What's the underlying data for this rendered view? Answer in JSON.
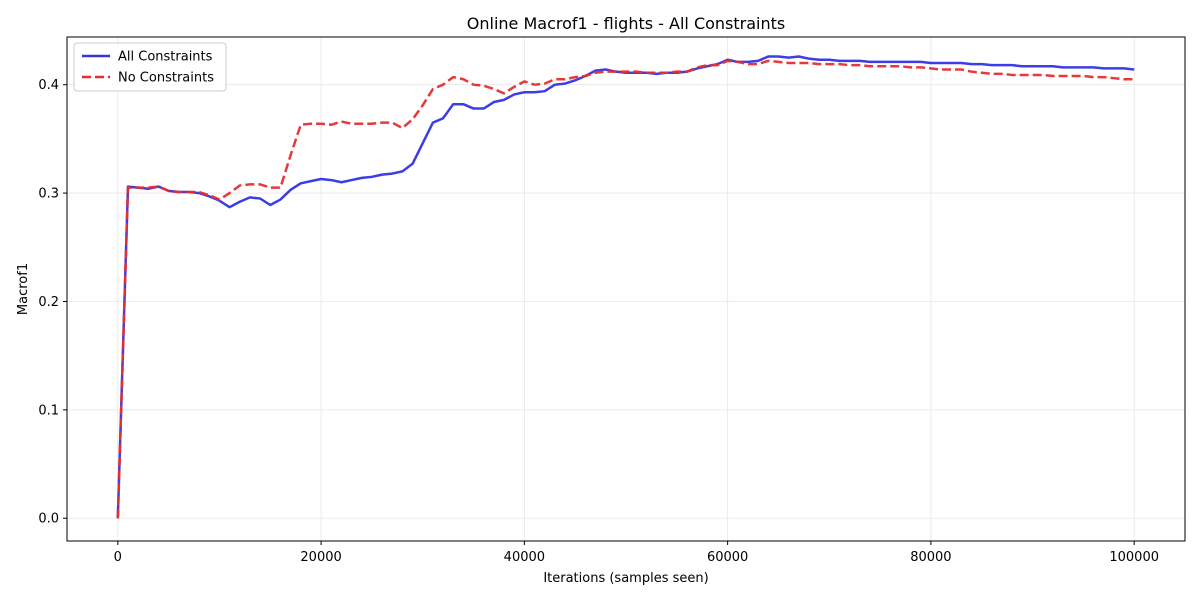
{
  "chart_data": {
    "type": "line",
    "title": "Online Macrof1 - flights - All Constraints",
    "xlabel": "Iterations (samples seen)",
    "ylabel": "Macrof1",
    "xlim": [
      -5000,
      105000
    ],
    "ylim": [
      -0.021,
      0.444
    ],
    "xticks": [
      0,
      20000,
      40000,
      60000,
      80000,
      100000
    ],
    "yticks": [
      0.0,
      0.1,
      0.2,
      0.3,
      0.4
    ],
    "xtick_labels": [
      "0",
      "20000",
      "40000",
      "60000",
      "80000",
      "100000"
    ],
    "ytick_labels": [
      "0.0",
      "0.1",
      "0.2",
      "0.3",
      "0.4"
    ],
    "grid": true,
    "legend_position": "top-left",
    "x": [
      0,
      1000,
      2000,
      3000,
      4000,
      5000,
      6000,
      7000,
      8000,
      9000,
      10000,
      11000,
      12000,
      13000,
      14000,
      15000,
      16000,
      17000,
      18000,
      19000,
      20000,
      21000,
      22000,
      23000,
      24000,
      25000,
      26000,
      27000,
      28000,
      29000,
      30000,
      31000,
      32000,
      33000,
      34000,
      35000,
      36000,
      37000,
      38000,
      39000,
      40000,
      41000,
      42000,
      43000,
      44000,
      45000,
      46000,
      47000,
      48000,
      49000,
      50000,
      51000,
      52000,
      53000,
      54000,
      55000,
      56000,
      57000,
      58000,
      59000,
      60000,
      61000,
      62000,
      63000,
      64000,
      65000,
      66000,
      67000,
      68000,
      69000,
      70000,
      71000,
      72000,
      73000,
      74000,
      75000,
      76000,
      77000,
      78000,
      79000,
      80000,
      81000,
      82000,
      83000,
      84000,
      85000,
      86000,
      87000,
      88000,
      89000,
      90000,
      91000,
      92000,
      93000,
      94000,
      95000,
      96000,
      97000,
      98000,
      99000,
      100000
    ],
    "series": [
      {
        "name": "All Constraints",
        "color": "#3333e6",
        "style": "solid",
        "values": [
          0.0,
          0.306,
          0.305,
          0.304,
          0.306,
          0.302,
          0.301,
          0.301,
          0.3,
          0.297,
          0.293,
          0.287,
          0.292,
          0.296,
          0.295,
          0.289,
          0.294,
          0.303,
          0.309,
          0.311,
          0.313,
          0.312,
          0.31,
          0.312,
          0.314,
          0.315,
          0.317,
          0.318,
          0.32,
          0.327,
          0.346,
          0.365,
          0.369,
          0.382,
          0.382,
          0.378,
          0.378,
          0.384,
          0.386,
          0.391,
          0.393,
          0.393,
          0.394,
          0.4,
          0.401,
          0.404,
          0.408,
          0.413,
          0.414,
          0.412,
          0.411,
          0.411,
          0.411,
          0.41,
          0.411,
          0.411,
          0.412,
          0.415,
          0.417,
          0.419,
          0.423,
          0.421,
          0.421,
          0.422,
          0.426,
          0.426,
          0.425,
          0.426,
          0.424,
          0.423,
          0.423,
          0.422,
          0.422,
          0.422,
          0.421,
          0.421,
          0.421,
          0.421,
          0.421,
          0.421,
          0.42,
          0.42,
          0.42,
          0.42,
          0.419,
          0.419,
          0.418,
          0.418,
          0.418,
          0.417,
          0.417,
          0.417,
          0.417,
          0.416,
          0.416,
          0.416,
          0.416,
          0.415,
          0.415,
          0.415,
          0.414
        ]
      },
      {
        "name": "No Constraints",
        "color": "#e62e2e",
        "style": "dashed",
        "values": [
          0.0,
          0.305,
          0.305,
          0.305,
          0.306,
          0.302,
          0.301,
          0.301,
          0.301,
          0.298,
          0.294,
          0.3,
          0.307,
          0.308,
          0.308,
          0.305,
          0.305,
          0.335,
          0.363,
          0.364,
          0.364,
          0.363,
          0.366,
          0.364,
          0.364,
          0.364,
          0.365,
          0.365,
          0.36,
          0.368,
          0.381,
          0.396,
          0.4,
          0.407,
          0.405,
          0.4,
          0.399,
          0.396,
          0.392,
          0.398,
          0.403,
          0.4,
          0.401,
          0.405,
          0.405,
          0.407,
          0.408,
          0.411,
          0.412,
          0.412,
          0.412,
          0.412,
          0.411,
          0.411,
          0.411,
          0.412,
          0.412,
          0.416,
          0.418,
          0.418,
          0.422,
          0.421,
          0.419,
          0.419,
          0.422,
          0.421,
          0.42,
          0.42,
          0.42,
          0.419,
          0.419,
          0.419,
          0.418,
          0.418,
          0.417,
          0.417,
          0.417,
          0.417,
          0.416,
          0.416,
          0.415,
          0.414,
          0.414,
          0.414,
          0.412,
          0.411,
          0.41,
          0.41,
          0.409,
          0.409,
          0.409,
          0.409,
          0.408,
          0.408,
          0.408,
          0.408,
          0.407,
          0.407,
          0.406,
          0.405,
          0.405
        ]
      }
    ]
  }
}
